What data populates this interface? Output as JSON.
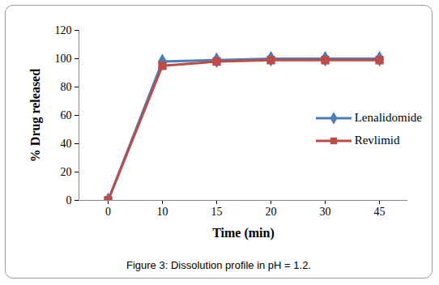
{
  "chart_data": {
    "type": "line",
    "title": "Figure 3: Dissolution profile in pH = 1.2.",
    "x_label": "Time (min)",
    "y_label": "% Drug released",
    "categories": [
      0,
      10,
      15,
      20,
      30,
      45
    ],
    "series": [
      {
        "name": "Lenalidomide",
        "color": "#4a7ebb",
        "marker": "diamond",
        "values": [
          0,
          98,
          99,
          100,
          100,
          100
        ]
      },
      {
        "name": "Revlimid",
        "color": "#be4b48",
        "marker": "square",
        "values": [
          0,
          95,
          98,
          99,
          99,
          99
        ]
      }
    ],
    "ylim": [
      0,
      120
    ],
    "yticks": [
      0,
      20,
      40,
      60,
      80,
      100,
      120
    ],
    "grid": false,
    "legend": "right"
  }
}
